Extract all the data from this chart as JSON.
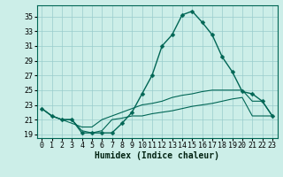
{
  "xlabel": "Humidex (Indice chaleur)",
  "bg_color": "#cceee8",
  "grid_color": "#99cccc",
  "line_color": "#006655",
  "xlim": [
    -0.5,
    23.5
  ],
  "ylim": [
    18.5,
    36.5
  ],
  "yticks": [
    19,
    21,
    23,
    25,
    27,
    29,
    31,
    33,
    35
  ],
  "xticks": [
    0,
    1,
    2,
    3,
    4,
    5,
    6,
    7,
    8,
    9,
    10,
    11,
    12,
    13,
    14,
    15,
    16,
    17,
    18,
    19,
    20,
    21,
    22,
    23
  ],
  "line1_y": [
    22.5,
    21.5,
    21.0,
    21.0,
    19.2,
    19.2,
    19.2,
    19.2,
    20.5,
    22.0,
    24.5,
    27.0,
    31.0,
    32.5,
    35.2,
    35.7,
    34.2,
    32.5,
    29.5,
    27.5,
    24.8,
    24.5,
    23.5,
    21.5
  ],
  "line2_y": [
    22.5,
    21.5,
    21.0,
    20.5,
    20.0,
    20.0,
    21.0,
    21.5,
    22.0,
    22.5,
    23.0,
    23.2,
    23.5,
    24.0,
    24.3,
    24.5,
    24.8,
    25.0,
    25.0,
    25.0,
    25.0,
    23.5,
    23.5,
    21.5
  ],
  "line3_y": [
    22.5,
    21.5,
    21.0,
    21.0,
    19.5,
    19.2,
    19.5,
    21.0,
    21.2,
    21.5,
    21.5,
    21.8,
    22.0,
    22.2,
    22.5,
    22.8,
    23.0,
    23.2,
    23.5,
    23.8,
    24.0,
    21.5,
    21.5,
    21.5
  ],
  "xlabel_fontsize": 7,
  "tick_fontsize": 6,
  "linewidth": 1.0,
  "marker_size": 2.5
}
